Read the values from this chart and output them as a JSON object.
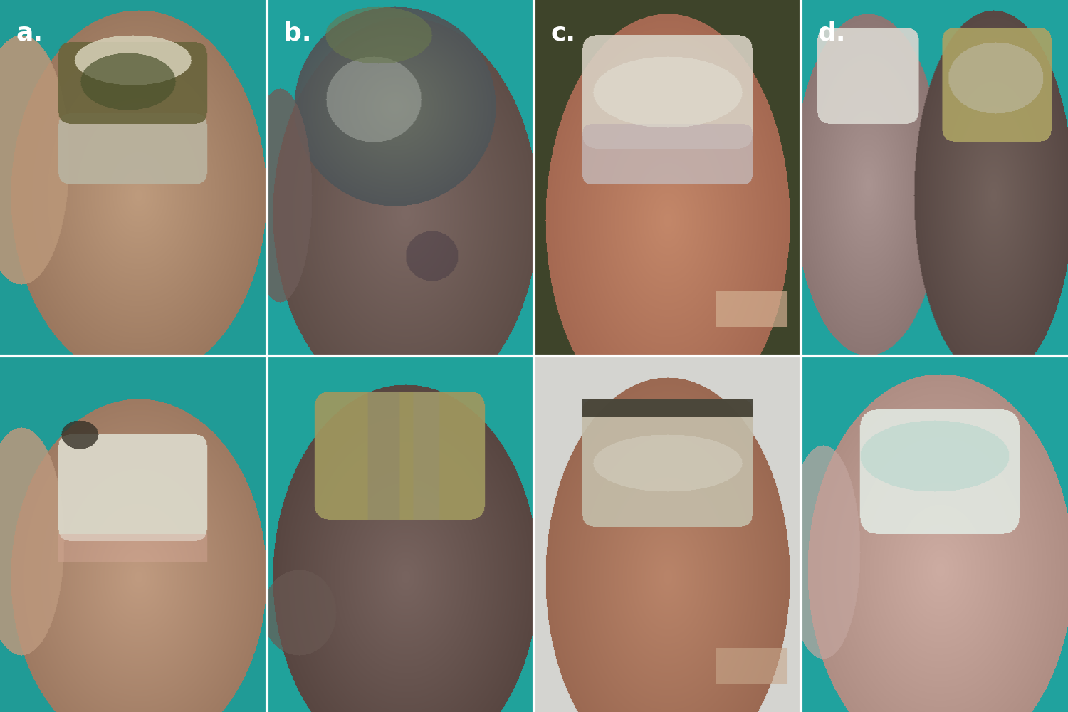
{
  "labels": [
    "a.",
    "b.",
    "c.",
    "d."
  ],
  "label_color": "#ffffff",
  "label_fontsize": 26,
  "label_fontweight": "bold",
  "n_cols": 4,
  "n_rows": 2,
  "fig_width": 15.0,
  "fig_height": 10.0,
  "border_color": "#ffffff",
  "border_linewidth": 3,
  "hspace": 0.004,
  "wspace": 0.004,
  "panels": {
    "a_top": {
      "bg": [
        32,
        155,
        155
      ],
      "skin": [
        185,
        145,
        115
      ],
      "nail_main": [
        120,
        110,
        70
      ],
      "nail_light": [
        190,
        185,
        155
      ],
      "damage": [
        80,
        90,
        50
      ]
    },
    "b_top": {
      "bg": [
        30,
        165,
        165
      ],
      "skin": [
        120,
        100,
        95
      ],
      "nail_dark": [
        80,
        85,
        90
      ],
      "nail_light": [
        170,
        175,
        170
      ],
      "nail_green": [
        100,
        115,
        80
      ]
    },
    "c_top": {
      "bg": [
        65,
        70,
        45
      ],
      "skin": [
        185,
        130,
        100
      ],
      "nail": [
        200,
        195,
        185
      ],
      "nail_lower": [
        155,
        145,
        155
      ]
    },
    "d_top": {
      "bg": [
        30,
        165,
        165
      ],
      "skin_dark": [
        110,
        95,
        90
      ],
      "skin_pink": [
        190,
        155,
        150
      ],
      "nail_white": [
        215,
        215,
        210
      ],
      "nail_yellow": [
        185,
        175,
        110
      ]
    },
    "a_bottom": {
      "bg": [
        30,
        158,
        155
      ],
      "skin": [
        188,
        148,
        118
      ],
      "nail_white": [
        210,
        208,
        195
      ],
      "nail_dark": [
        60,
        55,
        45
      ]
    },
    "b_bottom": {
      "bg": [
        30,
        165,
        155
      ],
      "skin": [
        110,
        90,
        80
      ],
      "nail_yellow": [
        160,
        150,
        95
      ],
      "nail_stripe": [
        130,
        125,
        110
      ]
    },
    "c_bottom": {
      "bg": [
        215,
        215,
        210
      ],
      "skin": [
        185,
        130,
        100
      ],
      "nail": [
        195,
        188,
        165
      ],
      "nail_dark": [
        60,
        58,
        48
      ]
    },
    "d_bottom": {
      "bg": [
        30,
        165,
        165
      ],
      "skin": [
        195,
        165,
        155
      ],
      "nail_teal": [
        175,
        210,
        200
      ],
      "nail_white": [
        230,
        235,
        230
      ]
    }
  }
}
